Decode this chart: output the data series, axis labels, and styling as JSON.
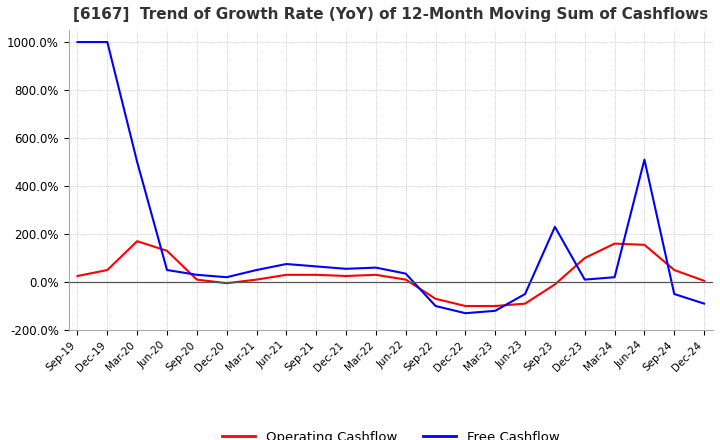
{
  "title": "[6167]  Trend of Growth Rate (YoY) of 12-Month Moving Sum of Cashflows",
  "title_fontsize": 11,
  "ylim": [
    -200,
    1050
  ],
  "yticks": [
    -200,
    0,
    200,
    400,
    600,
    800,
    1000
  ],
  "yticklabels": [
    "-200.0%",
    "0.0%",
    "200.0%",
    "400.0%",
    "600.0%",
    "800.0%",
    "1000.0%"
  ],
  "background_color": "#ffffff",
  "grid_color": "#aaaaaa",
  "legend_labels": [
    "Operating Cashflow",
    "Free Cashflow"
  ],
  "legend_colors": [
    "#ff0000",
    "#0000ff"
  ],
  "x_labels": [
    "Sep-19",
    "Dec-19",
    "Mar-20",
    "Jun-20",
    "Sep-20",
    "Dec-20",
    "Mar-21",
    "Jun-21",
    "Sep-21",
    "Dec-21",
    "Mar-22",
    "Jun-22",
    "Sep-22",
    "Dec-22",
    "Mar-23",
    "Jun-23",
    "Sep-23",
    "Dec-23",
    "Mar-24",
    "Jun-24",
    "Sep-24",
    "Dec-24"
  ],
  "operating_cashflow": [
    25,
    50,
    170,
    130,
    10,
    -5,
    10,
    30,
    30,
    25,
    30,
    10,
    -70,
    -100,
    -100,
    -90,
    -10,
    100,
    160,
    155,
    50,
    5
  ],
  "free_cashflow": [
    1000,
    1000,
    500,
    50,
    30,
    20,
    50,
    75,
    65,
    55,
    60,
    35,
    -100,
    -130,
    -120,
    -50,
    230,
    10,
    20,
    510,
    -50,
    -90
  ]
}
